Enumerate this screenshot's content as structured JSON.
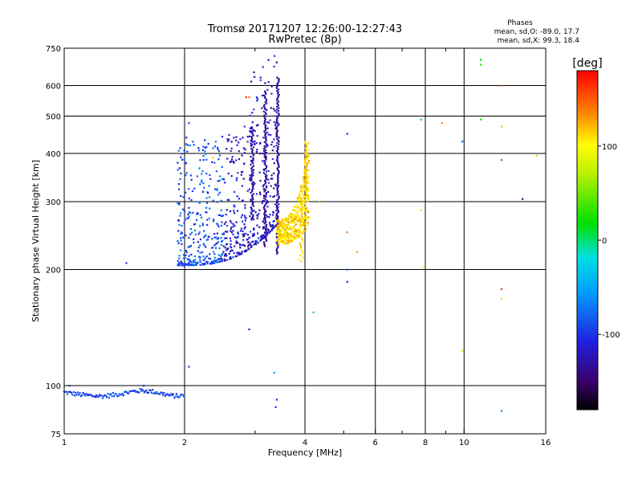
{
  "chart_data": {
    "type": "scatter",
    "title": "Tromsø 20171207 12:26:00-12:27:43",
    "subtitle": "RwPretec (8p)",
    "phases": {
      "heading": "Phases",
      "line_o": "mean, sd,O: -89.0, 17.7",
      "line_x": "mean, sd,X:  99.3, 18.4"
    },
    "xlabel": "Frequency [MHz]",
    "ylabel": "Stationary phase Virtual Height [km]",
    "xscale": "log",
    "yscale": "log",
    "xlim": [
      1,
      16
    ],
    "ylim": [
      75,
      750
    ],
    "xticks": [
      1,
      2,
      4,
      6,
      8,
      10,
      16
    ],
    "xtick_labels": [
      "1",
      "2",
      "4",
      "6",
      "8",
      "10",
      "16"
    ],
    "xgrid": [
      2,
      4,
      6,
      8,
      10
    ],
    "xminor": [
      3,
      5,
      7,
      9
    ],
    "yticks": [
      75,
      100,
      200,
      300,
      400,
      500,
      600,
      750
    ],
    "ytick_labels": [
      "75",
      "100",
      "200",
      "300",
      "400",
      "500",
      "600",
      "750"
    ],
    "ygrid": [
      100,
      200,
      300,
      400,
      500,
      600
    ],
    "colorbar": {
      "label": "[deg]",
      "range": [
        -180,
        180
      ],
      "ticks": [
        100,
        0,
        -100
      ],
      "tick_labels": [
        "100",
        "0",
        "-100"
      ]
    },
    "clusters": [
      {
        "name": "E-layer trace",
        "x_range": [
          1.0,
          2.0
        ],
        "y_center": 96,
        "phase": -100
      },
      {
        "name": "F-layer O-mode trace",
        "x_range": [
          1.9,
          3.45
        ],
        "y_range": [
          205,
          630
        ],
        "phase": -100
      },
      {
        "name": "F-layer X-mode trace",
        "x_range": [
          3.4,
          4.1
        ],
        "y_range": [
          230,
          430
        ],
        "phase": 100
      }
    ],
    "points": [
      {
        "x": 1.43,
        "y": 208,
        "phase": -100
      },
      {
        "x": 1.03,
        "y": 100,
        "phase": -100
      },
      {
        "x": 1.58,
        "y": 100,
        "phase": -110
      },
      {
        "x": 2.05,
        "y": 112,
        "phase": -100
      },
      {
        "x": 2.05,
        "y": 480,
        "phase": -90
      },
      {
        "x": 2.02,
        "y": 440,
        "phase": -110
      },
      {
        "x": 2.35,
        "y": 390,
        "phase": 120
      },
      {
        "x": 2.85,
        "y": 560,
        "phase": 160
      },
      {
        "x": 2.9,
        "y": 560,
        "phase": 150
      },
      {
        "x": 2.9,
        "y": 140,
        "phase": -110
      },
      {
        "x": 3.35,
        "y": 108,
        "phase": -50
      },
      {
        "x": 3.4,
        "y": 92,
        "phase": -110
      },
      {
        "x": 3.38,
        "y": 88,
        "phase": -110
      },
      {
        "x": 4.2,
        "y": 155,
        "phase": 0
      },
      {
        "x": 4.35,
        "y": 300,
        "phase": 50
      },
      {
        "x": 5.1,
        "y": 450,
        "phase": -110
      },
      {
        "x": 5.1,
        "y": 250,
        "phase": 140
      },
      {
        "x": 5.1,
        "y": 200,
        "phase": -80
      },
      {
        "x": 5.1,
        "y": 186,
        "phase": -120
      },
      {
        "x": 5.4,
        "y": 222,
        "phase": 130
      },
      {
        "x": 7.8,
        "y": 490,
        "phase": -40
      },
      {
        "x": 7.8,
        "y": 285,
        "phase": 110
      },
      {
        "x": 7.9,
        "y": 203,
        "phase": 100
      },
      {
        "x": 8.8,
        "y": 480,
        "phase": 140
      },
      {
        "x": 9.9,
        "y": 430,
        "phase": -80
      },
      {
        "x": 9.9,
        "y": 123,
        "phase": 110
      },
      {
        "x": 11.0,
        "y": 700,
        "phase": 10
      },
      {
        "x": 11.0,
        "y": 680,
        "phase": 30
      },
      {
        "x": 11.0,
        "y": 490,
        "phase": 20
      },
      {
        "x": 12.4,
        "y": 600,
        "phase": 150
      },
      {
        "x": 12.4,
        "y": 470,
        "phase": 120
      },
      {
        "x": 12.4,
        "y": 385,
        "phase": -70
      },
      {
        "x": 12.4,
        "y": 178,
        "phase": 160
      },
      {
        "x": 12.4,
        "y": 168,
        "phase": 110
      },
      {
        "x": 12.4,
        "y": 86,
        "phase": -60
      },
      {
        "x": 14.0,
        "y": 305,
        "phase": -140
      },
      {
        "x": 15.2,
        "y": 395,
        "phase": 120
      }
    ]
  }
}
